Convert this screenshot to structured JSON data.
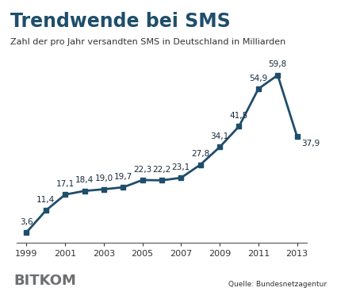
{
  "chart_data": {
    "type": "line",
    "title": "Trendwende bei SMS",
    "subtitle": "Zahl der pro Jahr versandten SMS in Deutschland in Milliarden",
    "source": "Quelle: Bundesnetzagentur",
    "logo": "BITKOM",
    "x": [
      1999,
      2000,
      2001,
      2002,
      2003,
      2004,
      2005,
      2006,
      2007,
      2008,
      2009,
      2010,
      2011,
      2012,
      2013
    ],
    "values": [
      3.6,
      11.4,
      17.1,
      18.4,
      19.0,
      19.7,
      22.3,
      22.2,
      23.1,
      27.8,
      34.1,
      41.5,
      54.9,
      59.8,
      37.9
    ],
    "value_labels": [
      "3,6",
      "11,4",
      "17,1",
      "18,4",
      "19,0",
      "19,7",
      "22,3",
      "22,2",
      "23,1",
      "27,8",
      "34,1",
      "41,5",
      "54,9",
      "59,8",
      "37,9"
    ],
    "data_labels": true,
    "color": "#1f4e6b",
    "marker": "square",
    "xlim": [
      1998.5,
      2013.5
    ],
    "xticks": [
      1999,
      2001,
      2003,
      2005,
      2007,
      2009,
      2011,
      2013
    ],
    "ylim": [
      0,
      65
    ],
    "tick_labels": "x",
    "grid": false
  }
}
